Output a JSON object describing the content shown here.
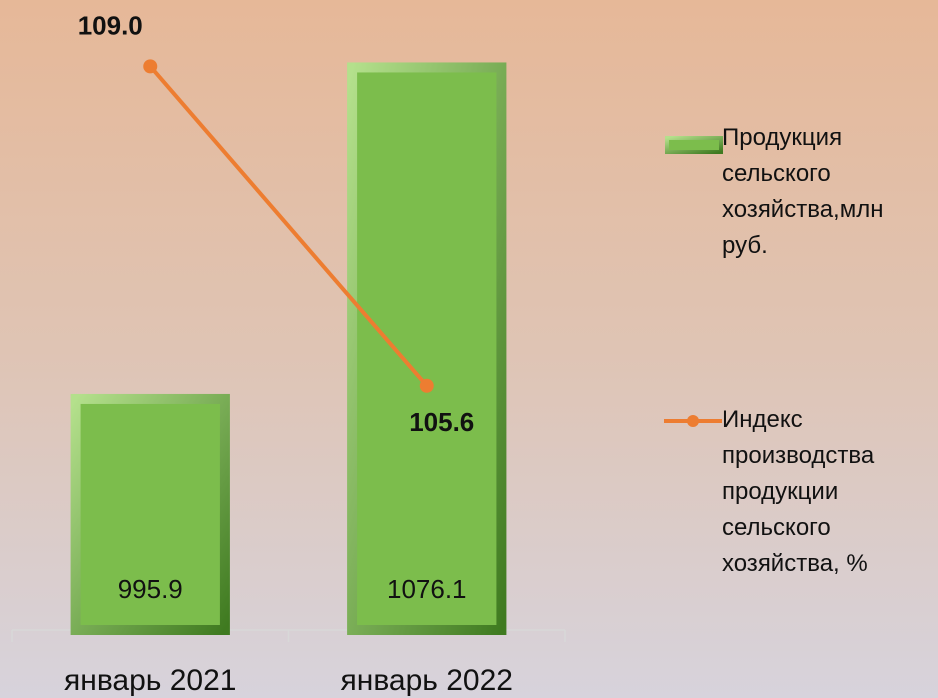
{
  "chart_data": {
    "type": "bar_line",
    "categories": [
      "январь 2021",
      "январь 2022"
    ],
    "series": [
      {
        "name": "Продукция сельского хозяйства,млн руб.",
        "type": "bar",
        "color": "#7cbd4c",
        "values": [
          995.9,
          1076.1
        ]
      },
      {
        "name": "Индекс производства продукции сельского хозяйства, %",
        "type": "line",
        "color": "#ed7d31",
        "axis": "y2",
        "values": [
          109.0,
          105.6
        ],
        "value_labels": [
          "109.0",
          "105.6"
        ]
      }
    ],
    "ylim": [
      940,
      1090
    ],
    "y2lim": [
      103,
      109.6
    ],
    "legend": "right"
  }
}
